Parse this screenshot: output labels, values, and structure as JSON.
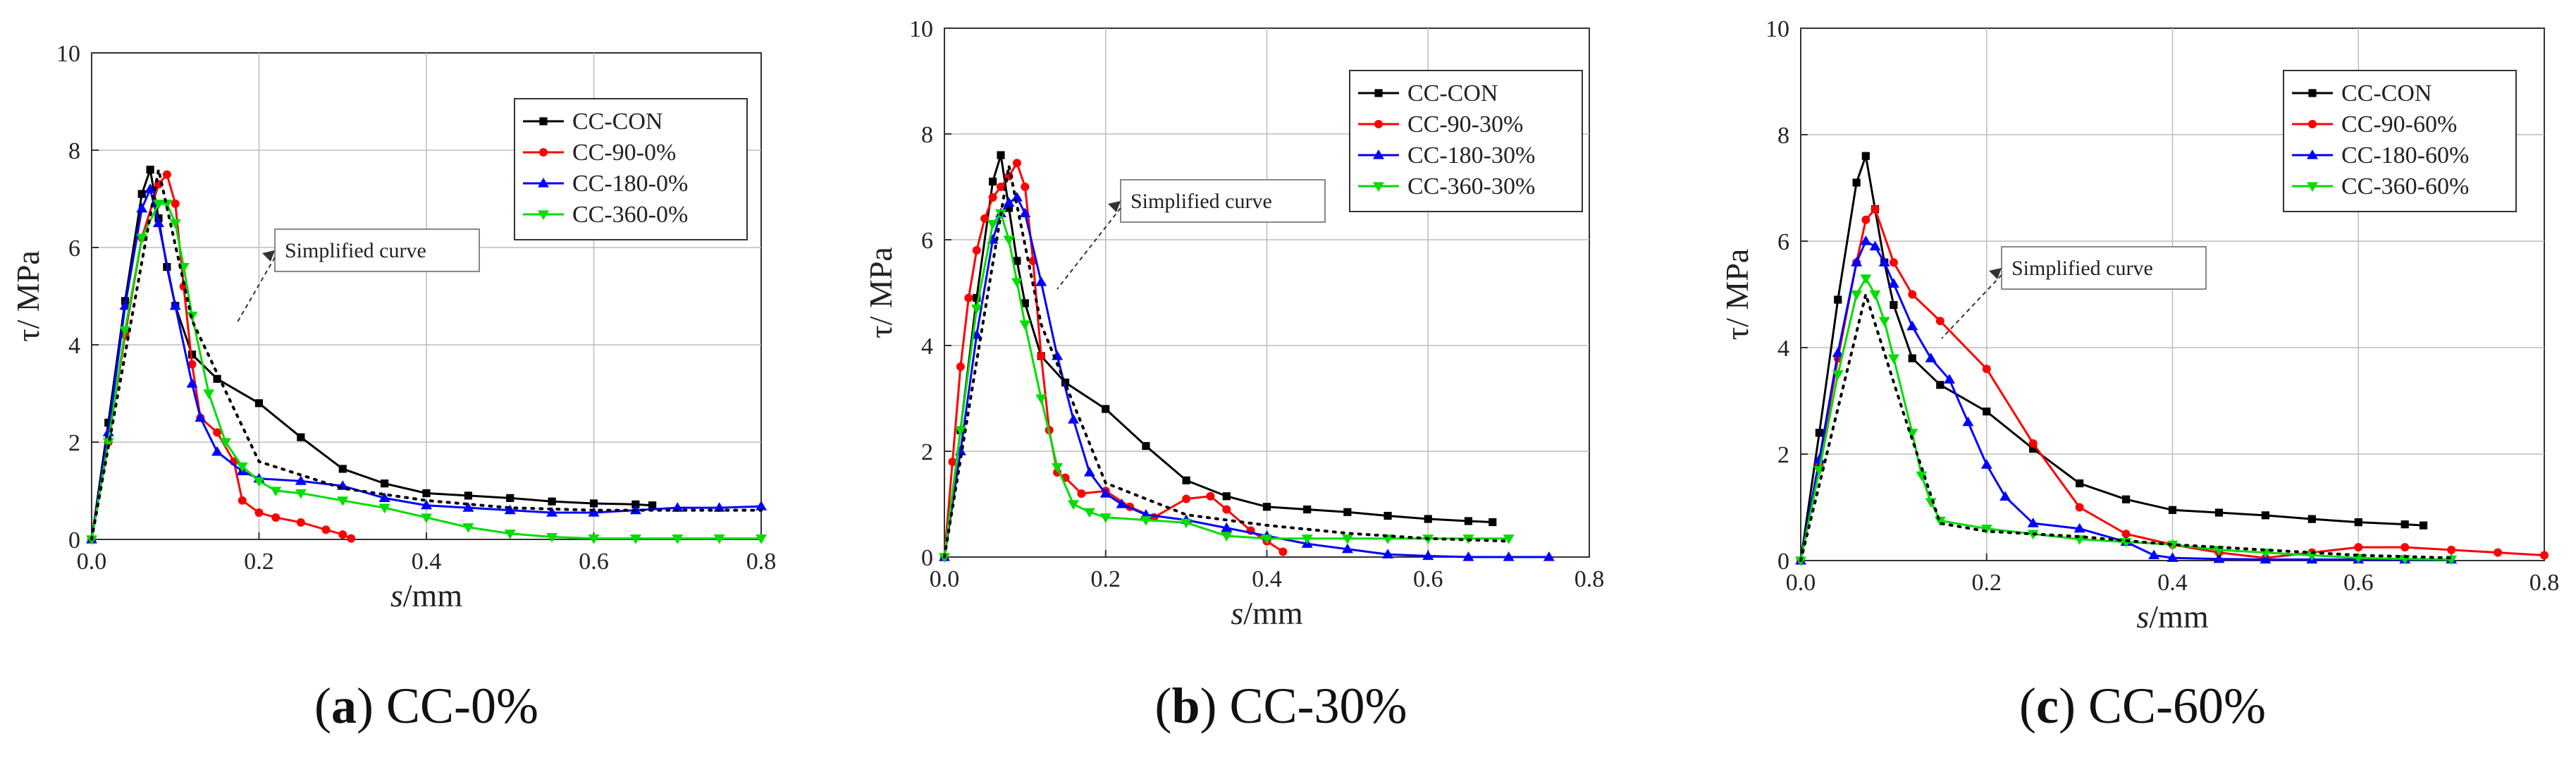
{
  "chart_data": [
    {
      "type": "line",
      "panel_label": "a",
      "caption": "CC-0%",
      "xlabel_var": "s",
      "xlabel_unit": "/mm",
      "ylabel": "τ/ MPa",
      "xlim": [
        0,
        0.8
      ],
      "ylim": [
        0,
        10
      ],
      "xticks": [
        "0.0",
        "0.2",
        "0.4",
        "0.6",
        "0.8"
      ],
      "yticks": [
        "0",
        "2",
        "4",
        "6",
        "8",
        "10"
      ],
      "legend_position": "top-right",
      "annotation": "Simplified curve",
      "series": [
        {
          "name": "CC-CON",
          "color": "#000000",
          "marker": "square",
          "x": [
            0,
            0.02,
            0.04,
            0.06,
            0.07,
            0.08,
            0.09,
            0.1,
            0.12,
            0.15,
            0.2,
            0.25,
            0.3,
            0.35,
            0.4,
            0.45,
            0.5,
            0.55,
            0.6,
            0.65,
            0.67
          ],
          "y": [
            0,
            2.4,
            4.9,
            7.1,
            7.6,
            6.6,
            5.6,
            4.8,
            3.8,
            3.3,
            2.8,
            2.1,
            1.45,
            1.15,
            0.95,
            0.9,
            0.85,
            0.78,
            0.74,
            0.72,
            0.7
          ]
        },
        {
          "name": "CC-90-0%",
          "color": "#ff0000",
          "marker": "circle",
          "x": [
            0,
            0.02,
            0.04,
            0.06,
            0.08,
            0.09,
            0.1,
            0.11,
            0.12,
            0.13,
            0.15,
            0.17,
            0.18,
            0.2,
            0.22,
            0.25,
            0.28,
            0.3,
            0.31
          ],
          "y": [
            0,
            2.0,
            4.2,
            6.2,
            7.3,
            7.5,
            6.9,
            5.2,
            3.6,
            2.5,
            2.2,
            1.6,
            0.8,
            0.55,
            0.45,
            0.35,
            0.2,
            0.1,
            0.02
          ]
        },
        {
          "name": "CC-180-0%",
          "color": "#0000ff",
          "marker": "triangle",
          "x": [
            0,
            0.02,
            0.04,
            0.06,
            0.07,
            0.08,
            0.1,
            0.12,
            0.13,
            0.15,
            0.18,
            0.2,
            0.25,
            0.3,
            0.35,
            0.4,
            0.45,
            0.5,
            0.55,
            0.6,
            0.65,
            0.7,
            0.75,
            0.8
          ],
          "y": [
            0,
            2.2,
            4.8,
            6.8,
            7.2,
            6.5,
            4.8,
            3.2,
            2.5,
            1.8,
            1.4,
            1.25,
            1.2,
            1.1,
            0.85,
            0.7,
            0.65,
            0.6,
            0.55,
            0.55,
            0.6,
            0.65,
            0.65,
            0.68
          ]
        },
        {
          "name": "CC-360-0%",
          "color": "#00dd00",
          "marker": "triangle-down",
          "x": [
            0,
            0.02,
            0.04,
            0.06,
            0.08,
            0.09,
            0.1,
            0.11,
            0.12,
            0.14,
            0.16,
            0.18,
            0.2,
            0.22,
            0.25,
            0.3,
            0.35,
            0.4,
            0.45,
            0.5,
            0.55,
            0.6,
            0.65,
            0.7,
            0.75,
            0.8
          ],
          "y": [
            0,
            2.0,
            4.3,
            6.2,
            6.9,
            6.9,
            6.5,
            5.6,
            4.6,
            3.0,
            2.0,
            1.5,
            1.2,
            1.0,
            0.95,
            0.8,
            0.65,
            0.45,
            0.25,
            0.12,
            0.05,
            0.02,
            0.02,
            0.02,
            0.02,
            0.02
          ]
        },
        {
          "name": "Simplified curve",
          "color": "#000000",
          "marker": "none",
          "dashed": true,
          "in_legend": false,
          "x": [
            0,
            0.08,
            0.12,
            0.2,
            0.3,
            0.4,
            0.5,
            0.6,
            0.8
          ],
          "y": [
            0,
            7.6,
            4.5,
            1.6,
            1.05,
            0.8,
            0.65,
            0.6,
            0.6
          ]
        }
      ]
    },
    {
      "type": "line",
      "panel_label": "b",
      "caption": "CC-30%",
      "xlabel_var": "s",
      "xlabel_unit": "/mm",
      "ylabel": "τ/ MPa",
      "xlim": [
        0,
        0.8
      ],
      "ylim": [
        0,
        10
      ],
      "xticks": [
        "0.0",
        "0.2",
        "0.4",
        "0.6",
        "0.8"
      ],
      "yticks": [
        "0",
        "2",
        "4",
        "6",
        "8",
        "10"
      ],
      "legend_position": "top-right",
      "annotation": "Simplified curve",
      "series": [
        {
          "name": "CC-CON",
          "color": "#000000",
          "marker": "square",
          "x": [
            0,
            0.02,
            0.04,
            0.06,
            0.07,
            0.08,
            0.09,
            0.1,
            0.12,
            0.15,
            0.2,
            0.25,
            0.3,
            0.35,
            0.4,
            0.45,
            0.5,
            0.55,
            0.6,
            0.65,
            0.68
          ],
          "y": [
            0,
            2.4,
            4.9,
            7.1,
            7.6,
            6.6,
            5.6,
            4.8,
            3.8,
            3.3,
            2.8,
            2.1,
            1.45,
            1.15,
            0.95,
            0.9,
            0.85,
            0.78,
            0.72,
            0.68,
            0.66
          ]
        },
        {
          "name": "CC-90-30%",
          "color": "#ff0000",
          "marker": "circle",
          "x": [
            0,
            0.01,
            0.02,
            0.03,
            0.04,
            0.05,
            0.06,
            0.07,
            0.08,
            0.09,
            0.1,
            0.11,
            0.12,
            0.13,
            0.14,
            0.15,
            0.17,
            0.2,
            0.23,
            0.26,
            0.3,
            0.33,
            0.35,
            0.38,
            0.4,
            0.42
          ],
          "y": [
            0,
            1.8,
            3.6,
            4.9,
            5.8,
            6.4,
            6.8,
            7.0,
            7.2,
            7.45,
            7.0,
            5.6,
            3.8,
            2.4,
            1.6,
            1.5,
            1.2,
            1.25,
            0.95,
            0.75,
            1.1,
            1.15,
            0.9,
            0.5,
            0.3,
            0.1
          ]
        },
        {
          "name": "CC-180-30%",
          "color": "#0000ff",
          "marker": "triangle",
          "x": [
            0,
            0.02,
            0.04,
            0.06,
            0.07,
            0.08,
            0.09,
            0.1,
            0.12,
            0.14,
            0.16,
            0.18,
            0.2,
            0.22,
            0.25,
            0.3,
            0.35,
            0.4,
            0.45,
            0.5,
            0.55,
            0.6,
            0.65,
            0.7,
            0.75
          ],
          "y": [
            0,
            2.0,
            4.2,
            6.0,
            6.5,
            6.7,
            6.8,
            6.5,
            5.2,
            3.8,
            2.6,
            1.6,
            1.2,
            1.0,
            0.8,
            0.7,
            0.55,
            0.4,
            0.25,
            0.15,
            0.05,
            0.02,
            0.0,
            0.0,
            0.0
          ]
        },
        {
          "name": "CC-360-30%",
          "color": "#00dd00",
          "marker": "triangle-down",
          "x": [
            0,
            0.02,
            0.04,
            0.06,
            0.07,
            0.08,
            0.09,
            0.1,
            0.12,
            0.14,
            0.16,
            0.18,
            0.2,
            0.25,
            0.3,
            0.35,
            0.4,
            0.45,
            0.5,
            0.55,
            0.6,
            0.65,
            0.7
          ],
          "y": [
            0,
            2.4,
            4.7,
            6.3,
            6.5,
            6.0,
            5.2,
            4.4,
            3.0,
            1.7,
            1.0,
            0.85,
            0.75,
            0.7,
            0.65,
            0.4,
            0.35,
            0.35,
            0.35,
            0.35,
            0.35,
            0.35,
            0.35
          ]
        },
        {
          "name": "Simplified curve",
          "color": "#000000",
          "marker": "none",
          "dashed": true,
          "in_legend": false,
          "x": [
            0,
            0.08,
            0.12,
            0.2,
            0.3,
            0.4,
            0.5,
            0.6,
            0.7
          ],
          "y": [
            0,
            7.4,
            4.4,
            1.4,
            0.8,
            0.6,
            0.45,
            0.35,
            0.3
          ]
        }
      ]
    },
    {
      "type": "line",
      "panel_label": "c",
      "caption": "CC-60%",
      "xlabel_var": "s",
      "xlabel_unit": "/mm",
      "ylabel": "τ/ MPa",
      "xlim": [
        0,
        0.8
      ],
      "ylim": [
        0,
        10
      ],
      "xticks": [
        "0.0",
        "0.2",
        "0.4",
        "0.6",
        "0.8"
      ],
      "yticks": [
        "0",
        "2",
        "4",
        "6",
        "8",
        "10"
      ],
      "legend_position": "top-right",
      "annotation": "Simplified curve",
      "series": [
        {
          "name": "CC-CON",
          "color": "#000000",
          "marker": "square",
          "x": [
            0,
            0.02,
            0.04,
            0.06,
            0.07,
            0.08,
            0.09,
            0.1,
            0.12,
            0.15,
            0.2,
            0.25,
            0.3,
            0.35,
            0.4,
            0.45,
            0.5,
            0.55,
            0.6,
            0.65,
            0.67
          ],
          "y": [
            0,
            2.4,
            4.9,
            7.1,
            7.6,
            6.6,
            5.6,
            4.8,
            3.8,
            3.3,
            2.8,
            2.1,
            1.45,
            1.15,
            0.95,
            0.9,
            0.85,
            0.78,
            0.72,
            0.68,
            0.66
          ]
        },
        {
          "name": "CC-90-60%",
          "color": "#ff0000",
          "marker": "circle",
          "x": [
            0,
            0.02,
            0.04,
            0.06,
            0.07,
            0.08,
            0.1,
            0.12,
            0.15,
            0.2,
            0.25,
            0.3,
            0.35,
            0.4,
            0.45,
            0.5,
            0.55,
            0.6,
            0.65,
            0.7,
            0.75,
            0.8
          ],
          "y": [
            0,
            1.8,
            3.8,
            5.6,
            6.4,
            6.6,
            5.6,
            5.0,
            4.5,
            3.6,
            2.2,
            1.0,
            0.5,
            0.3,
            0.15,
            0.05,
            0.15,
            0.25,
            0.25,
            0.2,
            0.15,
            0.1
          ]
        },
        {
          "name": "CC-180-60%",
          "color": "#0000ff",
          "marker": "triangle",
          "x": [
            0,
            0.02,
            0.04,
            0.06,
            0.07,
            0.08,
            0.09,
            0.1,
            0.12,
            0.14,
            0.16,
            0.18,
            0.2,
            0.22,
            0.25,
            0.3,
            0.35,
            0.38,
            0.4,
            0.45,
            0.5,
            0.55,
            0.6,
            0.65,
            0.7
          ],
          "y": [
            0,
            1.9,
            3.9,
            5.6,
            6.0,
            5.9,
            5.6,
            5.2,
            4.4,
            3.8,
            3.4,
            2.6,
            1.8,
            1.2,
            0.7,
            0.6,
            0.35,
            0.1,
            0.05,
            0.03,
            0.02,
            0.02,
            0.02,
            0.02,
            0.02
          ]
        },
        {
          "name": "CC-360-60%",
          "color": "#00dd00",
          "marker": "triangle-down",
          "x": [
            0,
            0.02,
            0.04,
            0.06,
            0.07,
            0.08,
            0.09,
            0.1,
            0.12,
            0.13,
            0.14,
            0.15,
            0.2,
            0.25,
            0.3,
            0.35,
            0.4,
            0.45,
            0.5,
            0.55,
            0.6,
            0.65,
            0.7
          ],
          "y": [
            0,
            1.7,
            3.5,
            5.0,
            5.3,
            5.0,
            4.5,
            3.8,
            2.4,
            1.6,
            1.1,
            0.75,
            0.6,
            0.5,
            0.4,
            0.35,
            0.3,
            0.2,
            0.15,
            0.1,
            0.05,
            0.03,
            0.02
          ]
        },
        {
          "name": "Simplified curve",
          "color": "#000000",
          "marker": "none",
          "dashed": true,
          "in_legend": false,
          "x": [
            0,
            0.07,
            0.11,
            0.15,
            0.2,
            0.3,
            0.4,
            0.5,
            0.6,
            0.7
          ],
          "y": [
            0,
            5.0,
            2.8,
            0.7,
            0.55,
            0.45,
            0.3,
            0.2,
            0.1,
            0.05
          ]
        }
      ]
    }
  ]
}
